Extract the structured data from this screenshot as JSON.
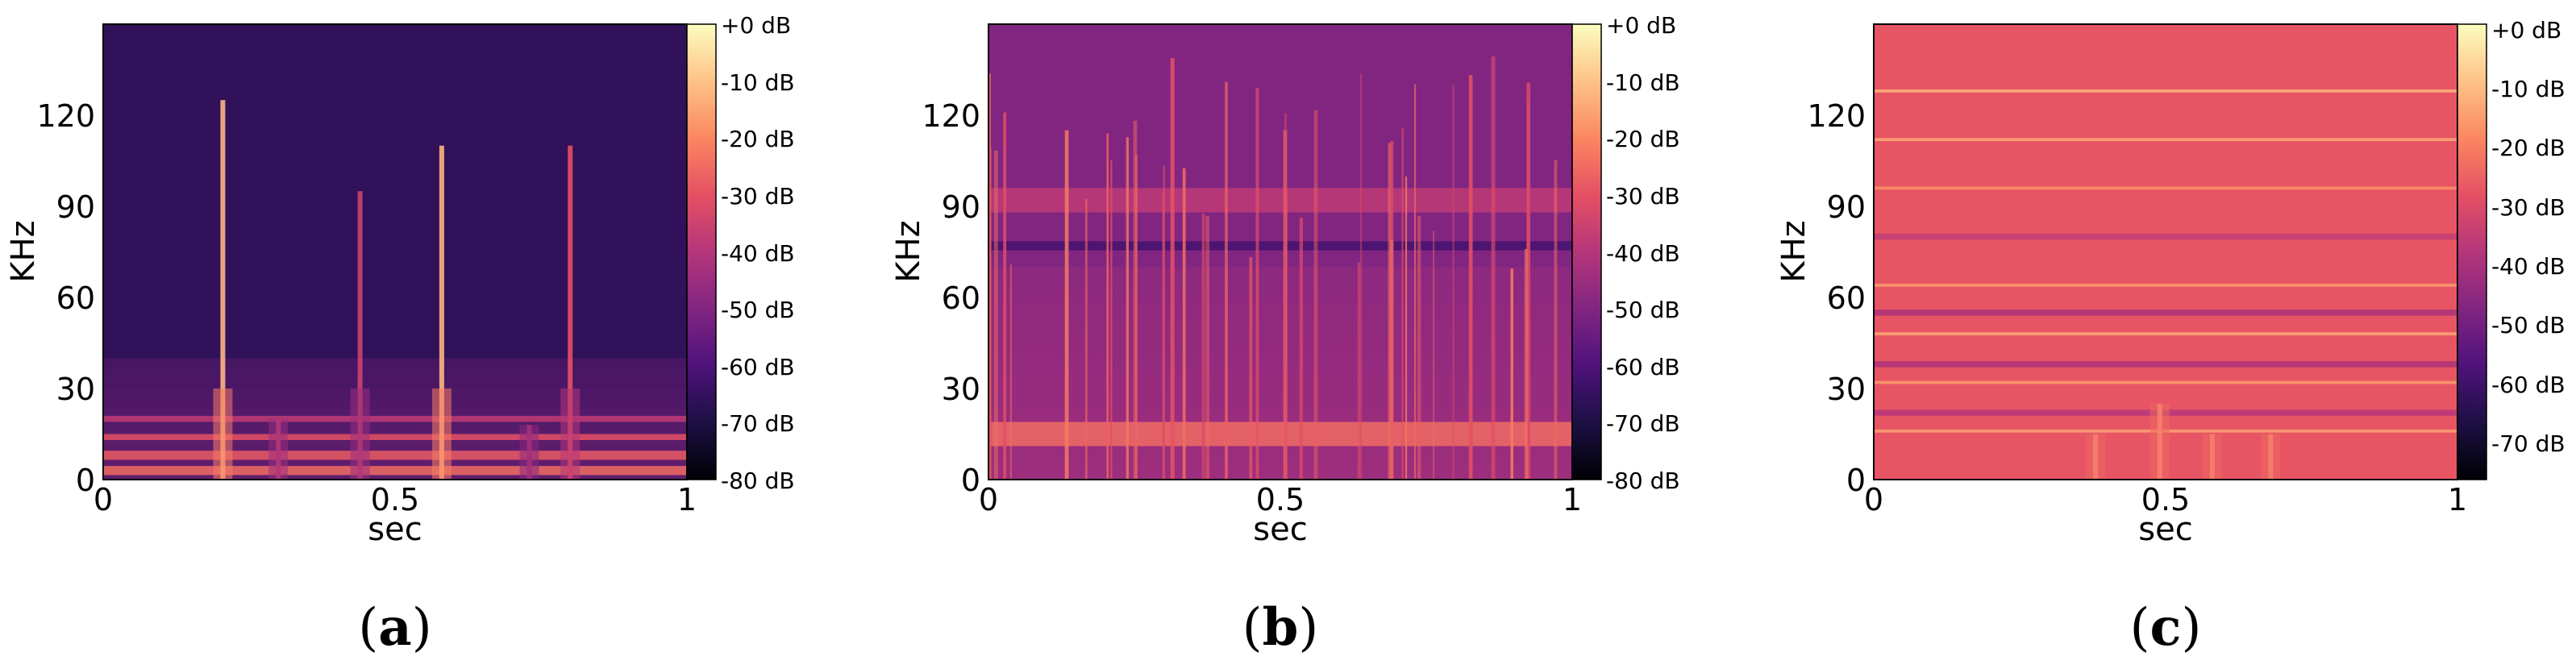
{
  "chart_data": [
    {
      "type": "heatmap",
      "panel_label": "a",
      "xlabel": "sec",
      "ylabel": "KHz",
      "x_ticks": [
        "0",
        "0.5",
        "1"
      ],
      "y_ticks": [
        "0",
        "30",
        "60",
        "90",
        "120"
      ],
      "xlim": [
        0,
        1
      ],
      "ylim": [
        0,
        150
      ],
      "colorbar": {
        "ticks": [
          "+0 dB",
          "-10 dB",
          "-20 dB",
          "-30 dB",
          "-40 dB",
          "-50 dB",
          "-60 dB",
          "-70 dB",
          "-80 dB"
        ],
        "range": [
          -80,
          0
        ]
      },
      "background_db": -66,
      "low_band": {
        "max_khz": 40,
        "db": -48
      },
      "horizontal_lines": [
        {
          "khz": 3,
          "db": -25,
          "width_khz": 3
        },
        {
          "khz": 8,
          "db": -28,
          "width_khz": 3
        },
        {
          "khz": 14,
          "db": -30,
          "width_khz": 2
        },
        {
          "khz": 20,
          "db": -38,
          "width_khz": 2
        }
      ],
      "vertical_events": [
        {
          "t": 0.205,
          "max_khz": 125,
          "db": -12
        },
        {
          "t": 0.44,
          "max_khz": 95,
          "db": -35
        },
        {
          "t": 0.58,
          "max_khz": 110,
          "db": -12
        },
        {
          "t": 0.8,
          "max_khz": 110,
          "db": -30
        },
        {
          "t": 0.3,
          "max_khz": 20,
          "db": -35
        },
        {
          "t": 0.73,
          "max_khz": 18,
          "db": -38
        }
      ],
      "vertical_line_count": 0,
      "vertical_line_db": -30
    },
    {
      "type": "heatmap",
      "panel_label": "b",
      "xlabel": "sec",
      "ylabel": "KHz",
      "x_ticks": [
        "0",
        "0.5",
        "1"
      ],
      "y_ticks": [
        "0",
        "30",
        "60",
        "90",
        "120"
      ],
      "xlim": [
        0,
        1
      ],
      "ylim": [
        0,
        150
      ],
      "colorbar": {
        "ticks": [
          "+0 dB",
          "-10 dB",
          "-20 dB",
          "-30 dB",
          "-40 dB",
          "-50 dB",
          "-60 dB",
          "-70 dB",
          "-80 dB"
        ],
        "range": [
          -80,
          0
        ]
      },
      "background_db": -50,
      "low_band": {
        "max_khz": 70,
        "db": -40
      },
      "horizontal_lines": [
        {
          "khz": 15,
          "db": -25,
          "width_khz": 8
        },
        {
          "khz": 92,
          "db": -38,
          "width_khz": 8
        },
        {
          "khz": 77,
          "db": -62,
          "width_khz": 3
        }
      ],
      "vertical_events": [],
      "vertical_line_count": 45,
      "vertical_line_db": -22
    },
    {
      "type": "heatmap",
      "panel_label": "c",
      "xlabel": "sec",
      "ylabel": "KHz",
      "x_ticks": [
        "0",
        "0.5",
        "1"
      ],
      "y_ticks": [
        "0",
        "30",
        "60",
        "90",
        "120"
      ],
      "xlim": [
        0,
        1
      ],
      "ylim": [
        0,
        150
      ],
      "colorbar": {
        "ticks": [
          "+0 dB",
          "-10 dB",
          "-20 dB",
          "-30 dB",
          "-40 dB",
          "-50 dB",
          "-60 dB",
          "-70 dB"
        ],
        "range": [
          -77,
          0
        ]
      },
      "background_db": -28,
      "low_band": {
        "max_khz": 0,
        "db": -28
      },
      "horizontal_lines": [
        {
          "khz": 128,
          "db": -12,
          "width_khz": 1
        },
        {
          "khz": 112,
          "db": -14,
          "width_khz": 1
        },
        {
          "khz": 96,
          "db": -18,
          "width_khz": 1
        },
        {
          "khz": 64,
          "db": -16,
          "width_khz": 1
        },
        {
          "khz": 48,
          "db": -14,
          "width_khz": 1
        },
        {
          "khz": 38,
          "db": -40,
          "width_khz": 2
        },
        {
          "khz": 32,
          "db": -16,
          "width_khz": 1
        },
        {
          "khz": 22,
          "db": -38,
          "width_khz": 2
        },
        {
          "khz": 16,
          "db": -15,
          "width_khz": 1
        },
        {
          "khz": 55,
          "db": -40,
          "width_khz": 2
        },
        {
          "khz": 80,
          "db": -36,
          "width_khz": 2
        }
      ],
      "vertical_events": [
        {
          "t": 0.38,
          "max_khz": 15,
          "db": -15
        },
        {
          "t": 0.49,
          "max_khz": 25,
          "db": -15
        },
        {
          "t": 0.58,
          "max_khz": 15,
          "db": -15
        },
        {
          "t": 0.68,
          "max_khz": 15,
          "db": -15
        }
      ],
      "vertical_line_count": 0,
      "vertical_line_db": -20
    }
  ]
}
